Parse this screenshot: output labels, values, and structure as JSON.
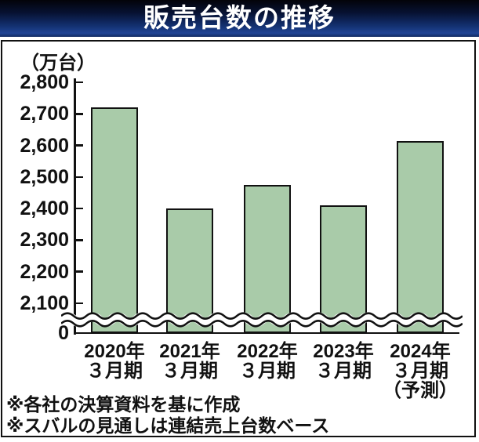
{
  "banner": {
    "title": "販売台数の推移"
  },
  "colors": {
    "banner_top": "#030309",
    "banner_bottom": "#1f4494",
    "title_text": "#ffffff",
    "bar_fill": "#a9cba9",
    "bar_border": "#111111",
    "axis": "#111111"
  },
  "chart_data": {
    "type": "bar",
    "title": "販売台数の推移",
    "unit_label": "（万台）",
    "categories": [
      {
        "lines": [
          "2020年",
          "３月期"
        ]
      },
      {
        "lines": [
          "2021年",
          "３月期"
        ]
      },
      {
        "lines": [
          "2022年",
          "３月期"
        ]
      },
      {
        "lines": [
          "2023年",
          "３月期"
        ]
      },
      {
        "lines": [
          "2024年",
          "３月期",
          "（予測）"
        ]
      }
    ],
    "values": [
      2720,
      2400,
      2475,
      2410,
      2615
    ],
    "y_ticks": [
      2800,
      2700,
      2600,
      2500,
      2400,
      2300,
      2200,
      2100
    ],
    "y_origin_label": "0",
    "axis_break": true,
    "ylim": [
      0,
      2800
    ],
    "grid": false,
    "legend": null
  },
  "footnotes": [
    "※各社の決算資料を基に作成",
    "※スバルの見通しは連結売上台数ベース"
  ]
}
